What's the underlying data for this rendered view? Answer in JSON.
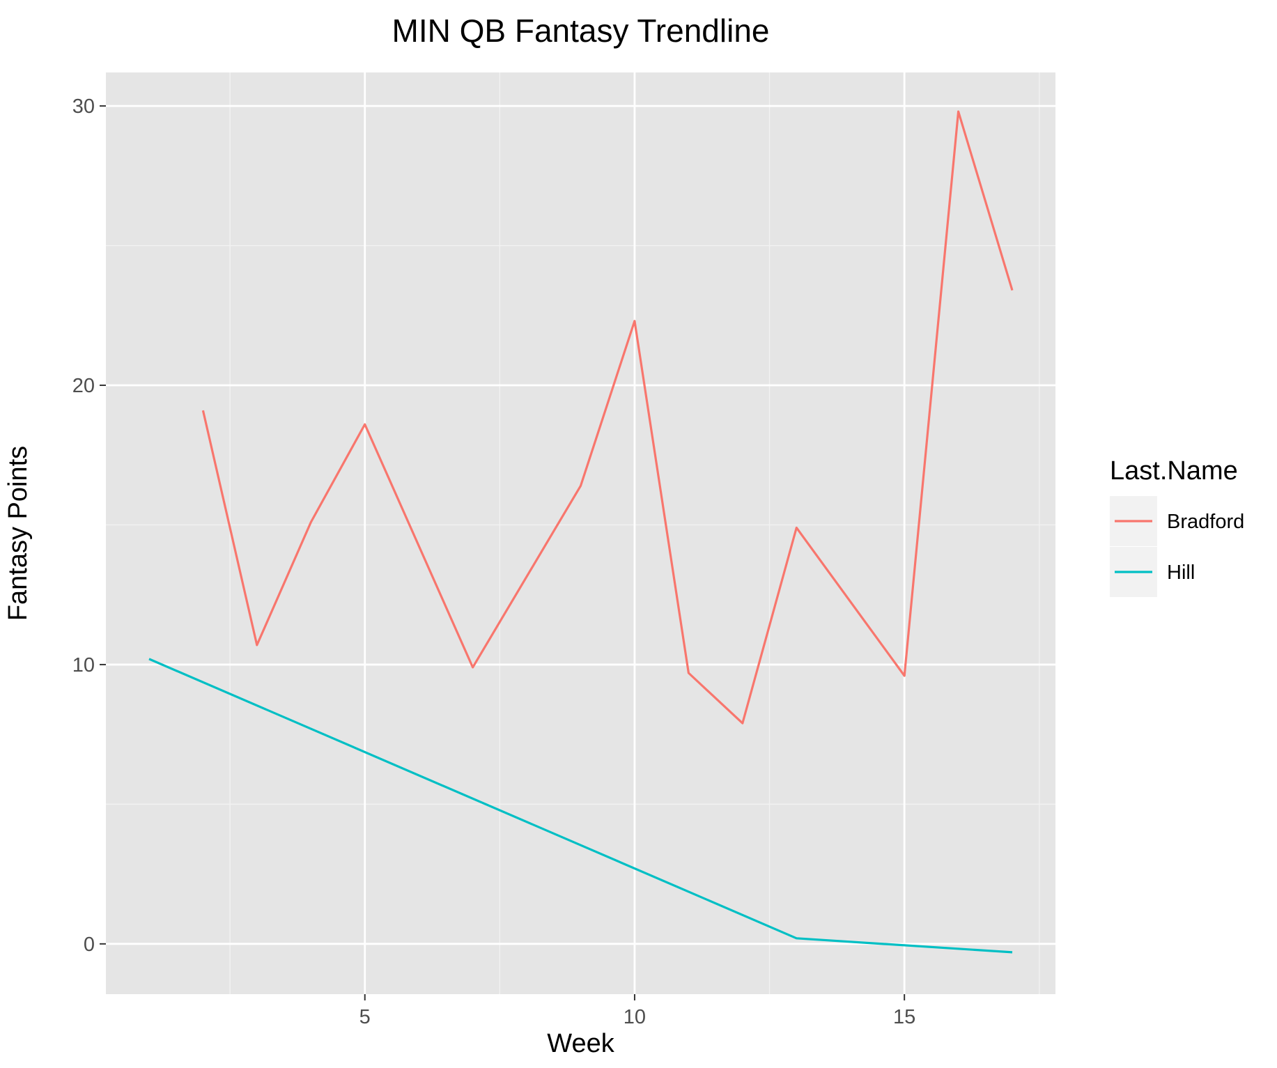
{
  "chart_data": {
    "type": "line",
    "title": "MIN QB Fantasy Trendline",
    "xlabel": "Week",
    "ylabel": "Fantasy Points",
    "xlim": [
      0.2,
      17.8
    ],
    "ylim": [
      -1.8,
      31.2
    ],
    "x_ticks": [
      5,
      10,
      15
    ],
    "x_tick_labels": [
      "5",
      "10",
      "15"
    ],
    "y_ticks": [
      0,
      10,
      20,
      30
    ],
    "y_tick_labels": [
      "0",
      "10",
      "20",
      "30"
    ],
    "grid": true,
    "legend": {
      "title": "Last.Name",
      "position": "right"
    },
    "panel_background": "#e5e5e5",
    "series": [
      {
        "name": "Bradford",
        "color": "#f8766d",
        "x": [
          2,
          3,
          4,
          5,
          7,
          9,
          10,
          11,
          12,
          13,
          15,
          16,
          17
        ],
        "y": [
          19.1,
          10.7,
          15.1,
          18.6,
          9.9,
          16.4,
          22.3,
          9.7,
          7.9,
          14.9,
          9.6,
          29.8,
          23.4
        ]
      },
      {
        "name": "Hill",
        "color": "#00bfc4",
        "x": [
          1,
          13,
          17
        ],
        "y": [
          10.2,
          0.2,
          -0.3
        ]
      }
    ]
  }
}
